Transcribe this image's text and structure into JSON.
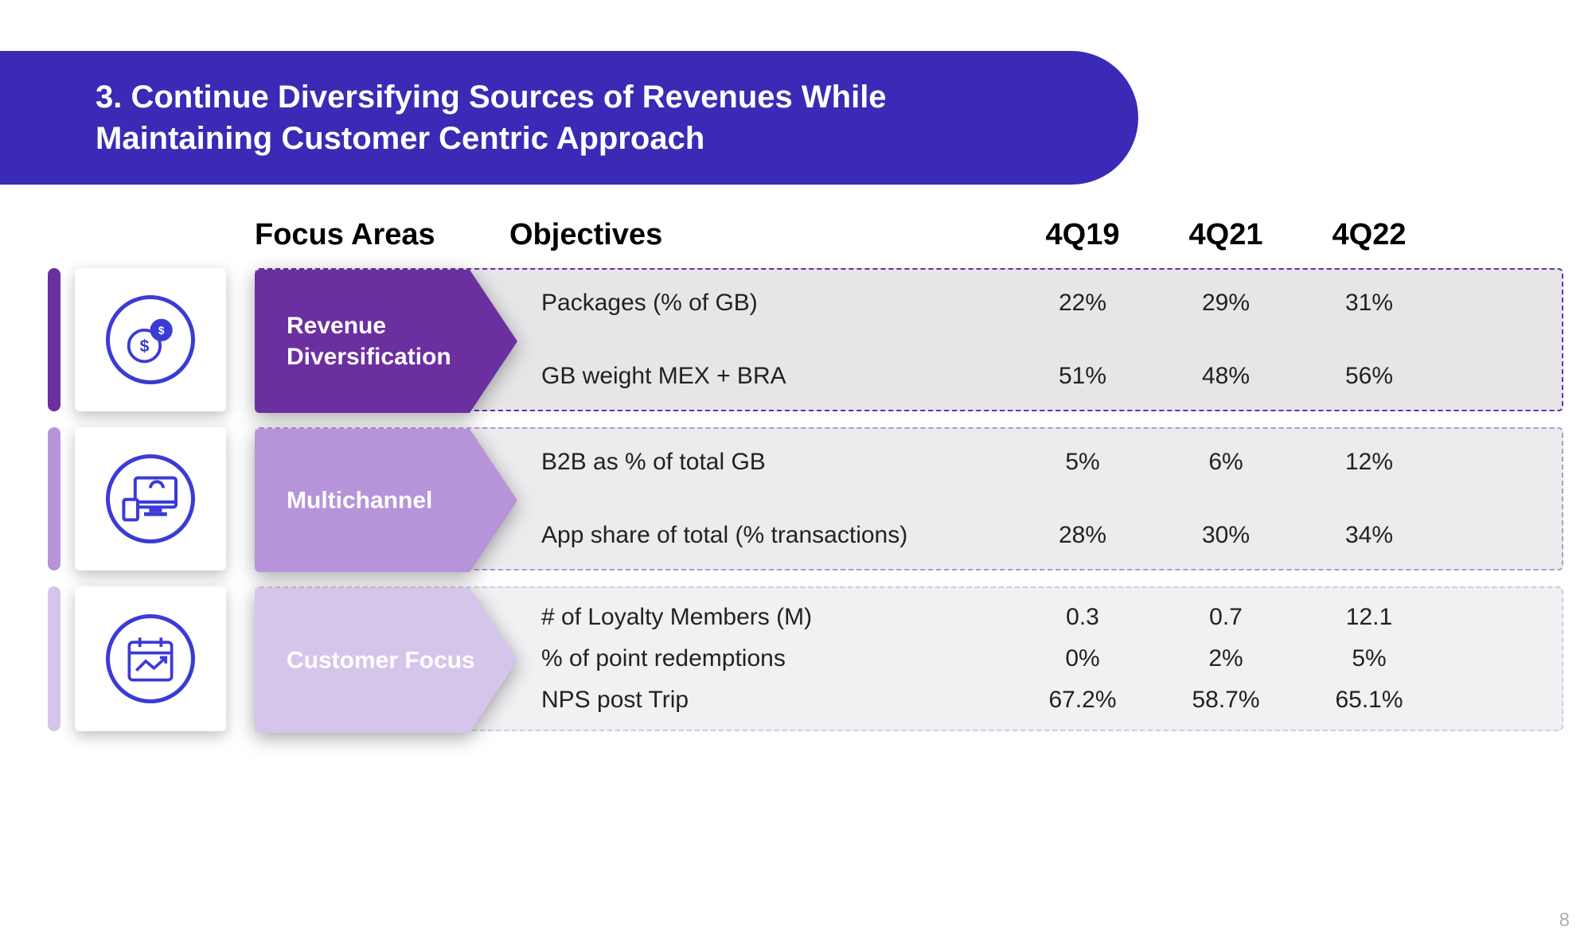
{
  "title": "3. Continue Diversifying Sources of Revenues While Maintaining Customer Centric Approach",
  "page_number": "8",
  "colors": {
    "banner": "#3b2ab5",
    "icon_stroke": "#3b3bd6",
    "section1": {
      "chevron": "#6b2fa0",
      "panel_bg": "#e6e5e8",
      "panel_border": "#6b2fa0",
      "accent": "#6b2fa0"
    },
    "section2": {
      "chevron": "#b794d9",
      "panel_bg": "#ecebee",
      "panel_border": "#b794d9",
      "accent": "#b794d9"
    },
    "section3": {
      "chevron": "#d6c5ea",
      "panel_bg": "#f1f0f3",
      "panel_border": "#d6c5ea",
      "accent": "#d6c5ea"
    }
  },
  "headers": {
    "focus": "Focus Areas",
    "objectives": "Objectives",
    "periods": [
      "4Q19",
      "4Q21",
      "4Q22"
    ]
  },
  "sections": [
    {
      "key": "section1",
      "focus": "Revenue\nDiversification",
      "icon": "money",
      "rows": [
        {
          "label": "Packages (% of GB)",
          "values": [
            "22%",
            "29%",
            "31%"
          ]
        },
        {
          "label": "GB weight MEX + BRA",
          "values": [
            "51%",
            "48%",
            "56%"
          ]
        }
      ]
    },
    {
      "key": "section2",
      "focus": "Multichannel",
      "icon": "devices",
      "rows": [
        {
          "label": "B2B as % of total GB",
          "values": [
            "5%",
            "6%",
            "12%"
          ]
        },
        {
          "label": "App share of total (% transactions)",
          "values": [
            "28%",
            "30%",
            "34%"
          ]
        }
      ]
    },
    {
      "key": "section3",
      "focus": "Customer Focus",
      "icon": "calendar",
      "rows": [
        {
          "label": "# of Loyalty Members (M)",
          "values": [
            "0.3",
            "0.7",
            "12.1"
          ]
        },
        {
          "label": "% of point redemptions",
          "values": [
            "0%",
            "2%",
            "5%"
          ]
        },
        {
          "label": "NPS post Trip",
          "values": [
            "67.2%",
            "58.7%",
            "65.1%"
          ]
        }
      ]
    }
  ]
}
